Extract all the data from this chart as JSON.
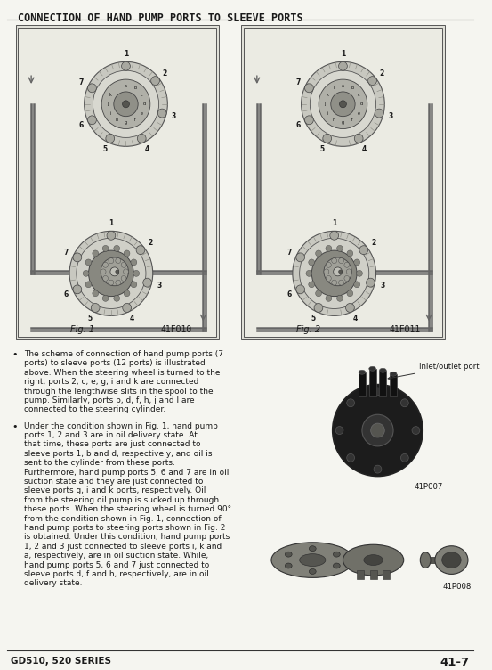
{
  "title": "CONNECTION OF HAND PUMP PORTS TO SLEEVE PORTS",
  "title_fontsize": 8.5,
  "title_weight": "bold",
  "fig1_label": "Fig. 1",
  "fig1_code": "41FO10",
  "fig2_label": "Fig. 2",
  "fig2_code": "41FO11",
  "photo1_code": "41PO07",
  "photo2_code": "41PO08",
  "inlet_label": "Inlet/outlet port",
  "bullet1": "The scheme of connection of hand pump ports (7 ports) to sleeve ports (12 ports) is illustrated above. When the steering wheel is turned to the right, ports 2, c, e, g, i and k are connected through the lengthwise slits in the spool to the pump. Similarly, ports b, d, f, h, j and l are connected to the steering cylinder.",
  "bullet2": "Under the condition shown in Fig. 1, hand pump ports 1, 2 and 3 are in oil delivery state. At that time, these ports are just connected to sleeve ports 1, b and d, respectively, and oil is sent to the cylinder from these ports. Furthermore, hand pump ports 5, 6 and 7 are in oil suction state and they are just connected to sleeve ports g, i and k ports, respectively. Oil from the steering oil pump is sucked up through these ports. When the steering wheel is turned 90° from the condition shown in Fig. 1, connection of hand pump ports to steering ports shown in Fig. 2 is obtained. Under this condition, hand pump ports 1, 2 and 3 just connected to sleeve ports i, k and a, respectively, are in oil suction state. While, hand pump ports 5, 6 and 7 just connected to sleeve ports d, f and h, respectively, are in oil delivery state.",
  "footer_left": "GD510, 520 SERIES",
  "footer_right": "41-7",
  "bg_color": "#f5f5f0",
  "text_color": "#1a1a1a",
  "line_color": "#333333",
  "diagram_bg": "#e0e0d8"
}
